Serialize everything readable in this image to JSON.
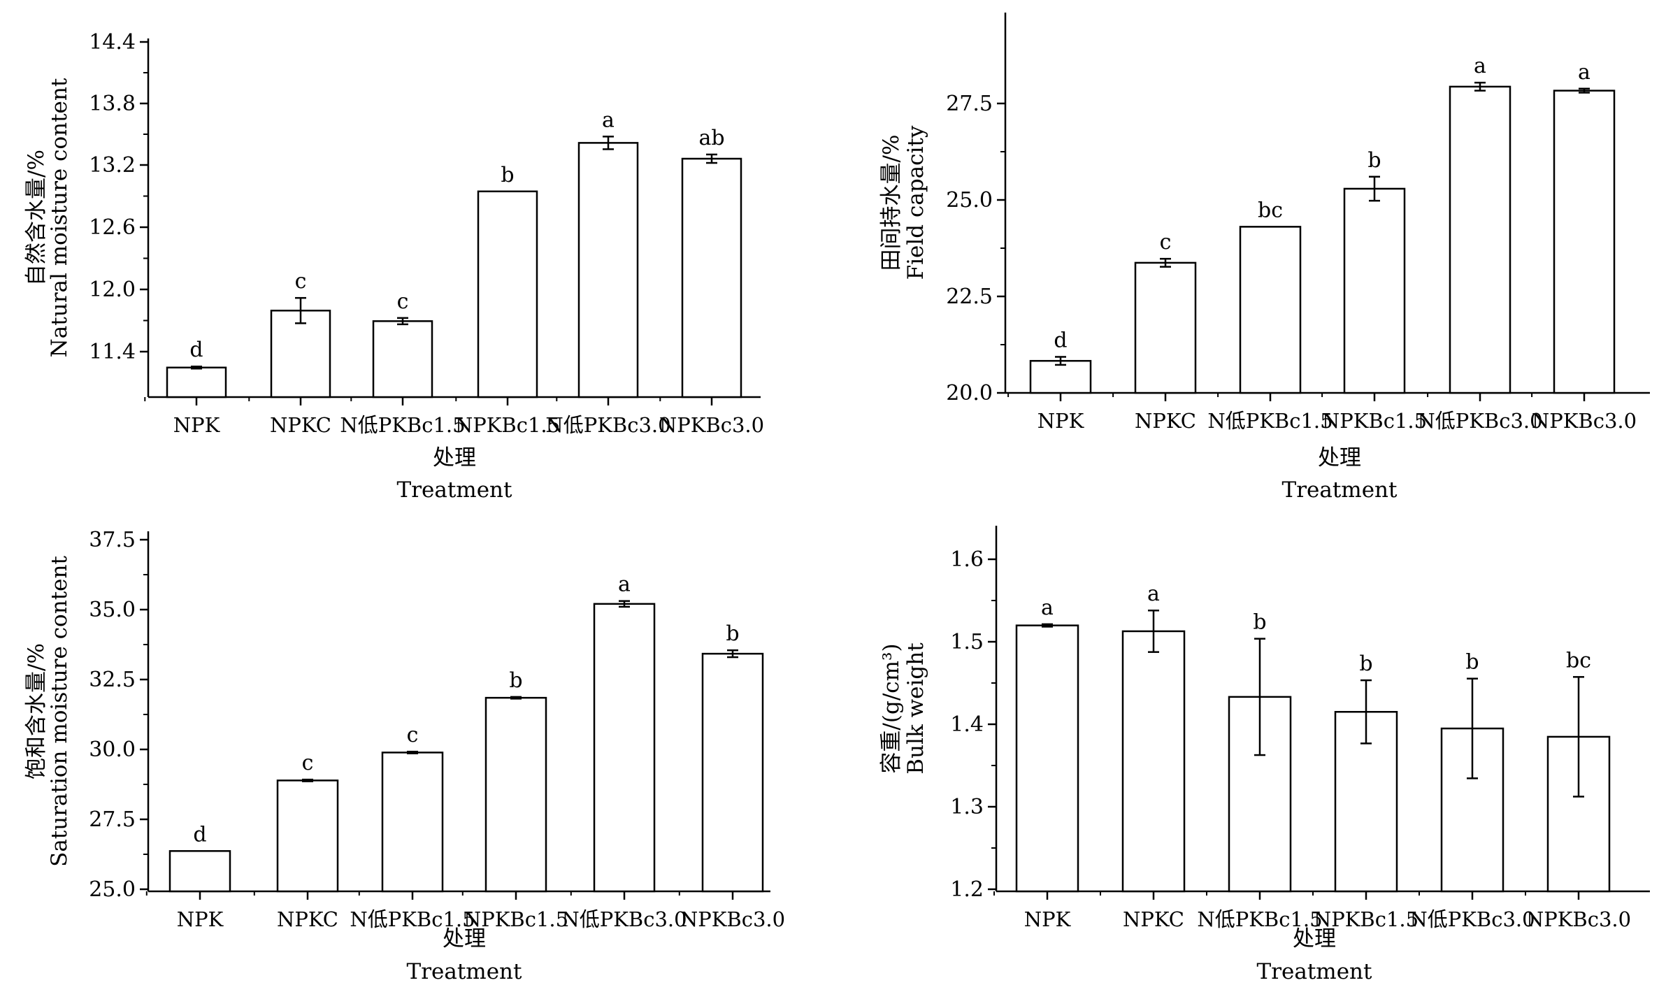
{
  "chart_data": [
    {
      "type": "bar",
      "categories": [
        "NPK",
        "NPKC",
        "N低PKBc1.5",
        "NPKBc1.5",
        "N低PKBc3.0",
        "NPKBc3.0"
      ],
      "values": [
        11.28,
        11.82,
        11.72,
        12.95,
        13.41,
        13.26
      ],
      "errors": [
        0.01,
        0.12,
        0.03,
        0.0,
        0.06,
        0.04
      ],
      "significance": [
        "d",
        "c",
        "c",
        "b",
        "a",
        "ab"
      ],
      "yticks": [
        "14.4",
        "13.8",
        "13.2",
        "12.6",
        "12.0",
        "11.4"
      ],
      "ylim": [
        11.0,
        14.4
      ],
      "ylabel_cn": "自然含水量/%",
      "ylabel_en": "Natural moisture content",
      "xlabel_cn": "处理",
      "xlabel_en": "Treatment"
    },
    {
      "type": "bar",
      "categories": [
        "NPK",
        "NPKC",
        "N低PKBc1.5",
        "NPKBc1.5",
        "N低PKBc3.0",
        "NPKBc3.0"
      ],
      "values": [
        20.8,
        23.25,
        24.15,
        25.1,
        27.65,
        27.55
      ],
      "errors": [
        0.1,
        0.1,
        0.0,
        0.3,
        0.1,
        0.05
      ],
      "significance": [
        "d",
        "c",
        "bc",
        "b",
        "a",
        "a"
      ],
      "yticks": [
        "27.5",
        "25.0",
        "22.5",
        "20.0"
      ],
      "ylim": [
        20.0,
        29.5
      ],
      "ylabel_cn": "田间持水量/%",
      "ylabel_en": "Field capacity",
      "xlabel_cn": "处理",
      "xlabel_en": "Treatment"
    },
    {
      "type": "bar",
      "categories": [
        "NPK",
        "NPKC",
        "N低PKBc1.5",
        "NPKBc1.5",
        "N低PKBc3.0",
        "NPKBc3.0"
      ],
      "values": [
        26.4,
        28.85,
        29.82,
        31.72,
        34.98,
        33.25
      ],
      "errors": [
        0.0,
        0.03,
        0.03,
        0.03,
        0.1,
        0.12
      ],
      "significance": [
        "d",
        "c",
        "c",
        "b",
        "a",
        "b"
      ],
      "yticks": [
        "37.5",
        "35.0",
        "32.5",
        "30.0",
        "27.5",
        "25.0"
      ],
      "ylim": [
        25.0,
        37.5
      ],
      "ylabel_cn": "饱和含水量/%",
      "ylabel_en": "Saturation moisture content",
      "xlabel_cn": "处理",
      "xlabel_en": "Treatment"
    },
    {
      "type": "bar",
      "categories": [
        "NPK",
        "NPKC",
        "N低PKBc1.5",
        "NPKBc1.5",
        "N低PKBc3.0",
        "NPKBc3.0"
      ],
      "values": [
        1.52,
        1.513,
        1.434,
        1.416,
        1.396,
        1.386
      ],
      "errors": [
        0.0015,
        0.025,
        0.07,
        0.038,
        0.06,
        0.072
      ],
      "significance": [
        "a",
        "a",
        "b",
        "b",
        "b",
        "bc"
      ],
      "yticks": [
        "1.6",
        "1.5",
        "1.4",
        "1.3",
        "1.2"
      ],
      "ylim": [
        1.2,
        1.64
      ],
      "ylabel_cn": "容重/(g/cm³)",
      "ylabel_en": "Bulk weight",
      "xlabel_cn": "处理",
      "xlabel_en": "Treatment"
    }
  ]
}
